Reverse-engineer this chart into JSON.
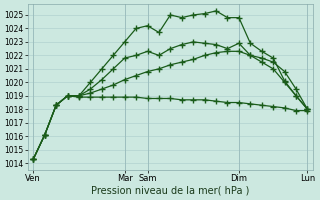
{
  "xlabel": "Pression niveau de la mer( hPa )",
  "bg_color": "#cce8e0",
  "grid_color": "#aacccc",
  "line_color": "#1a5c1a",
  "ylim": [
    1013.5,
    1025.8
  ],
  "yticks": [
    1014,
    1015,
    1016,
    1017,
    1018,
    1019,
    1020,
    1021,
    1022,
    1023,
    1024,
    1025
  ],
  "series": [
    {
      "x": [
        0,
        1,
        2,
        3,
        4,
        5,
        6,
        7,
        8,
        9,
        10,
        11,
        12,
        13,
        14,
        15,
        16,
        17,
        18,
        19,
        20,
        21,
        22,
        23,
        24
      ],
      "y": [
        1014.3,
        1016.1,
        1018.3,
        1019.0,
        1019.0,
        1020.0,
        1021.0,
        1022.0,
        1023.0,
        1024.0,
        1024.2,
        1023.7,
        1025.0,
        1024.8,
        1025.0,
        1025.1,
        1025.3,
        1024.8,
        1024.8,
        1022.9,
        1022.3,
        1021.8,
        1020.1,
        1019.0,
        1018.0
      ]
    },
    {
      "x": [
        0,
        1,
        2,
        3,
        4,
        5,
        6,
        7,
        8,
        9,
        10,
        11,
        12,
        13,
        14,
        15,
        16,
        17,
        18,
        19,
        20,
        21,
        22,
        23,
        24
      ],
      "y": [
        1014.3,
        1016.1,
        1018.3,
        1019.0,
        1019.0,
        1019.5,
        1020.2,
        1021.0,
        1021.8,
        1022.0,
        1022.3,
        1022.0,
        1022.5,
        1022.8,
        1023.0,
        1022.9,
        1022.8,
        1022.5,
        1022.9,
        1022.0,
        1021.5,
        1021.0,
        1020.0,
        1019.0,
        1018.0
      ]
    },
    {
      "x": [
        0,
        1,
        2,
        3,
        4,
        5,
        6,
        7,
        8,
        9,
        10,
        11,
        12,
        13,
        14,
        15,
        16,
        17,
        18,
        19,
        20,
        21,
        22,
        23,
        24
      ],
      "y": [
        1014.3,
        1016.1,
        1018.3,
        1019.0,
        1019.0,
        1019.2,
        1019.5,
        1019.8,
        1020.2,
        1020.5,
        1020.8,
        1021.0,
        1021.3,
        1021.5,
        1021.7,
        1022.0,
        1022.2,
        1022.3,
        1022.3,
        1022.0,
        1021.8,
        1021.5,
        1020.8,
        1019.5,
        1018.0
      ]
    },
    {
      "x": [
        0,
        1,
        2,
        3,
        4,
        5,
        6,
        7,
        8,
        9,
        10,
        11,
        12,
        13,
        14,
        15,
        16,
        17,
        18,
        19,
        20,
        21,
        22,
        23,
        24
      ],
      "y": [
        1014.3,
        1016.1,
        1018.3,
        1019.0,
        1018.9,
        1018.9,
        1018.9,
        1018.9,
        1018.9,
        1018.9,
        1018.8,
        1018.8,
        1018.8,
        1018.7,
        1018.7,
        1018.7,
        1018.6,
        1018.5,
        1018.5,
        1018.4,
        1018.3,
        1018.2,
        1018.1,
        1017.9,
        1017.9
      ]
    }
  ],
  "vlines": [
    {
      "x": 0,
      "label": "Ven"
    },
    {
      "x": 8,
      "label": "Mar"
    },
    {
      "x": 10,
      "label": "Sam"
    },
    {
      "x": 18,
      "label": "Dim"
    },
    {
      "x": 24,
      "label": "Lun"
    }
  ],
  "xtick_positions": [
    0,
    8,
    10,
    18,
    24
  ],
  "xtick_labels": [
    "Ven",
    "Mar",
    "Sam",
    "Dim",
    "Lun"
  ],
  "marker": "+",
  "markersize": 4.5,
  "linewidth": 0.9
}
